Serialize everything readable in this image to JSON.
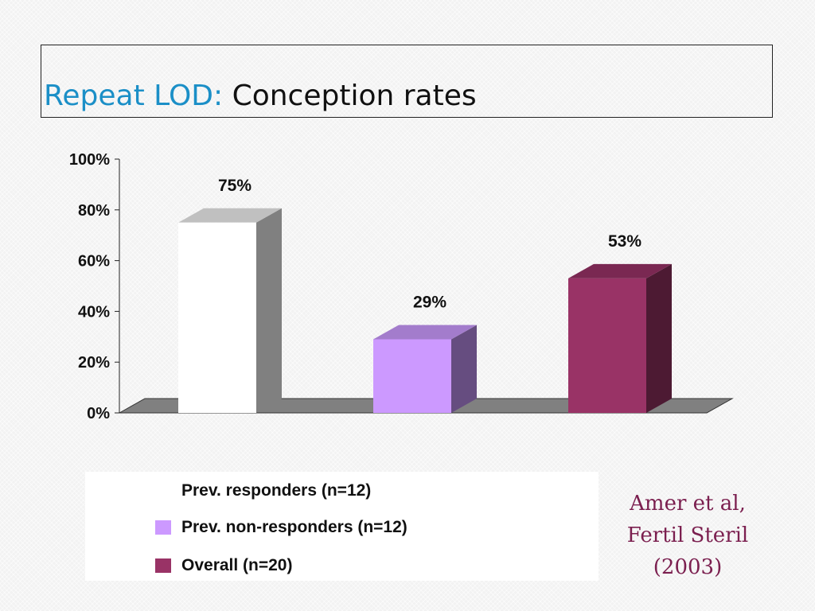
{
  "slide": {
    "title_accent": "Repeat LOD:",
    "title_rest": "Conception rates",
    "citation_lines": [
      "Amer et al,",
      "Fertil Steril",
      "(2003)"
    ]
  },
  "chart_data": {
    "type": "bar",
    "categories": [
      "Prev. responders (n=12)",
      "Prev. non-responders (n=12)",
      "Overall (n=20)"
    ],
    "values": [
      75,
      29,
      53
    ],
    "data_labels": [
      "75%",
      "29%",
      "53%"
    ],
    "yticks": [
      "0%",
      "20%",
      "40%",
      "60%",
      "80%",
      "100%"
    ],
    "ylim": [
      0,
      100
    ],
    "title": "",
    "xlabel": "",
    "ylabel": "",
    "legend_position": "bottom",
    "colors": [
      "#ffffff",
      "#cc99ff",
      "#993366"
    ],
    "top_colors": [
      "#c0c0c0",
      "#a37ccc",
      "#7a2852"
    ],
    "side_colors": [
      "#808080",
      "#664d80",
      "#4d1a33"
    ],
    "floor_color": "#808080"
  },
  "legend": {
    "items": [
      {
        "label": "Prev. responders (n=12)",
        "color": "#ffffff"
      },
      {
        "label": "Prev. non-responders (n=12)",
        "color": "#cc99ff"
      },
      {
        "label": "Overall (n=20)",
        "color": "#993366"
      }
    ]
  }
}
